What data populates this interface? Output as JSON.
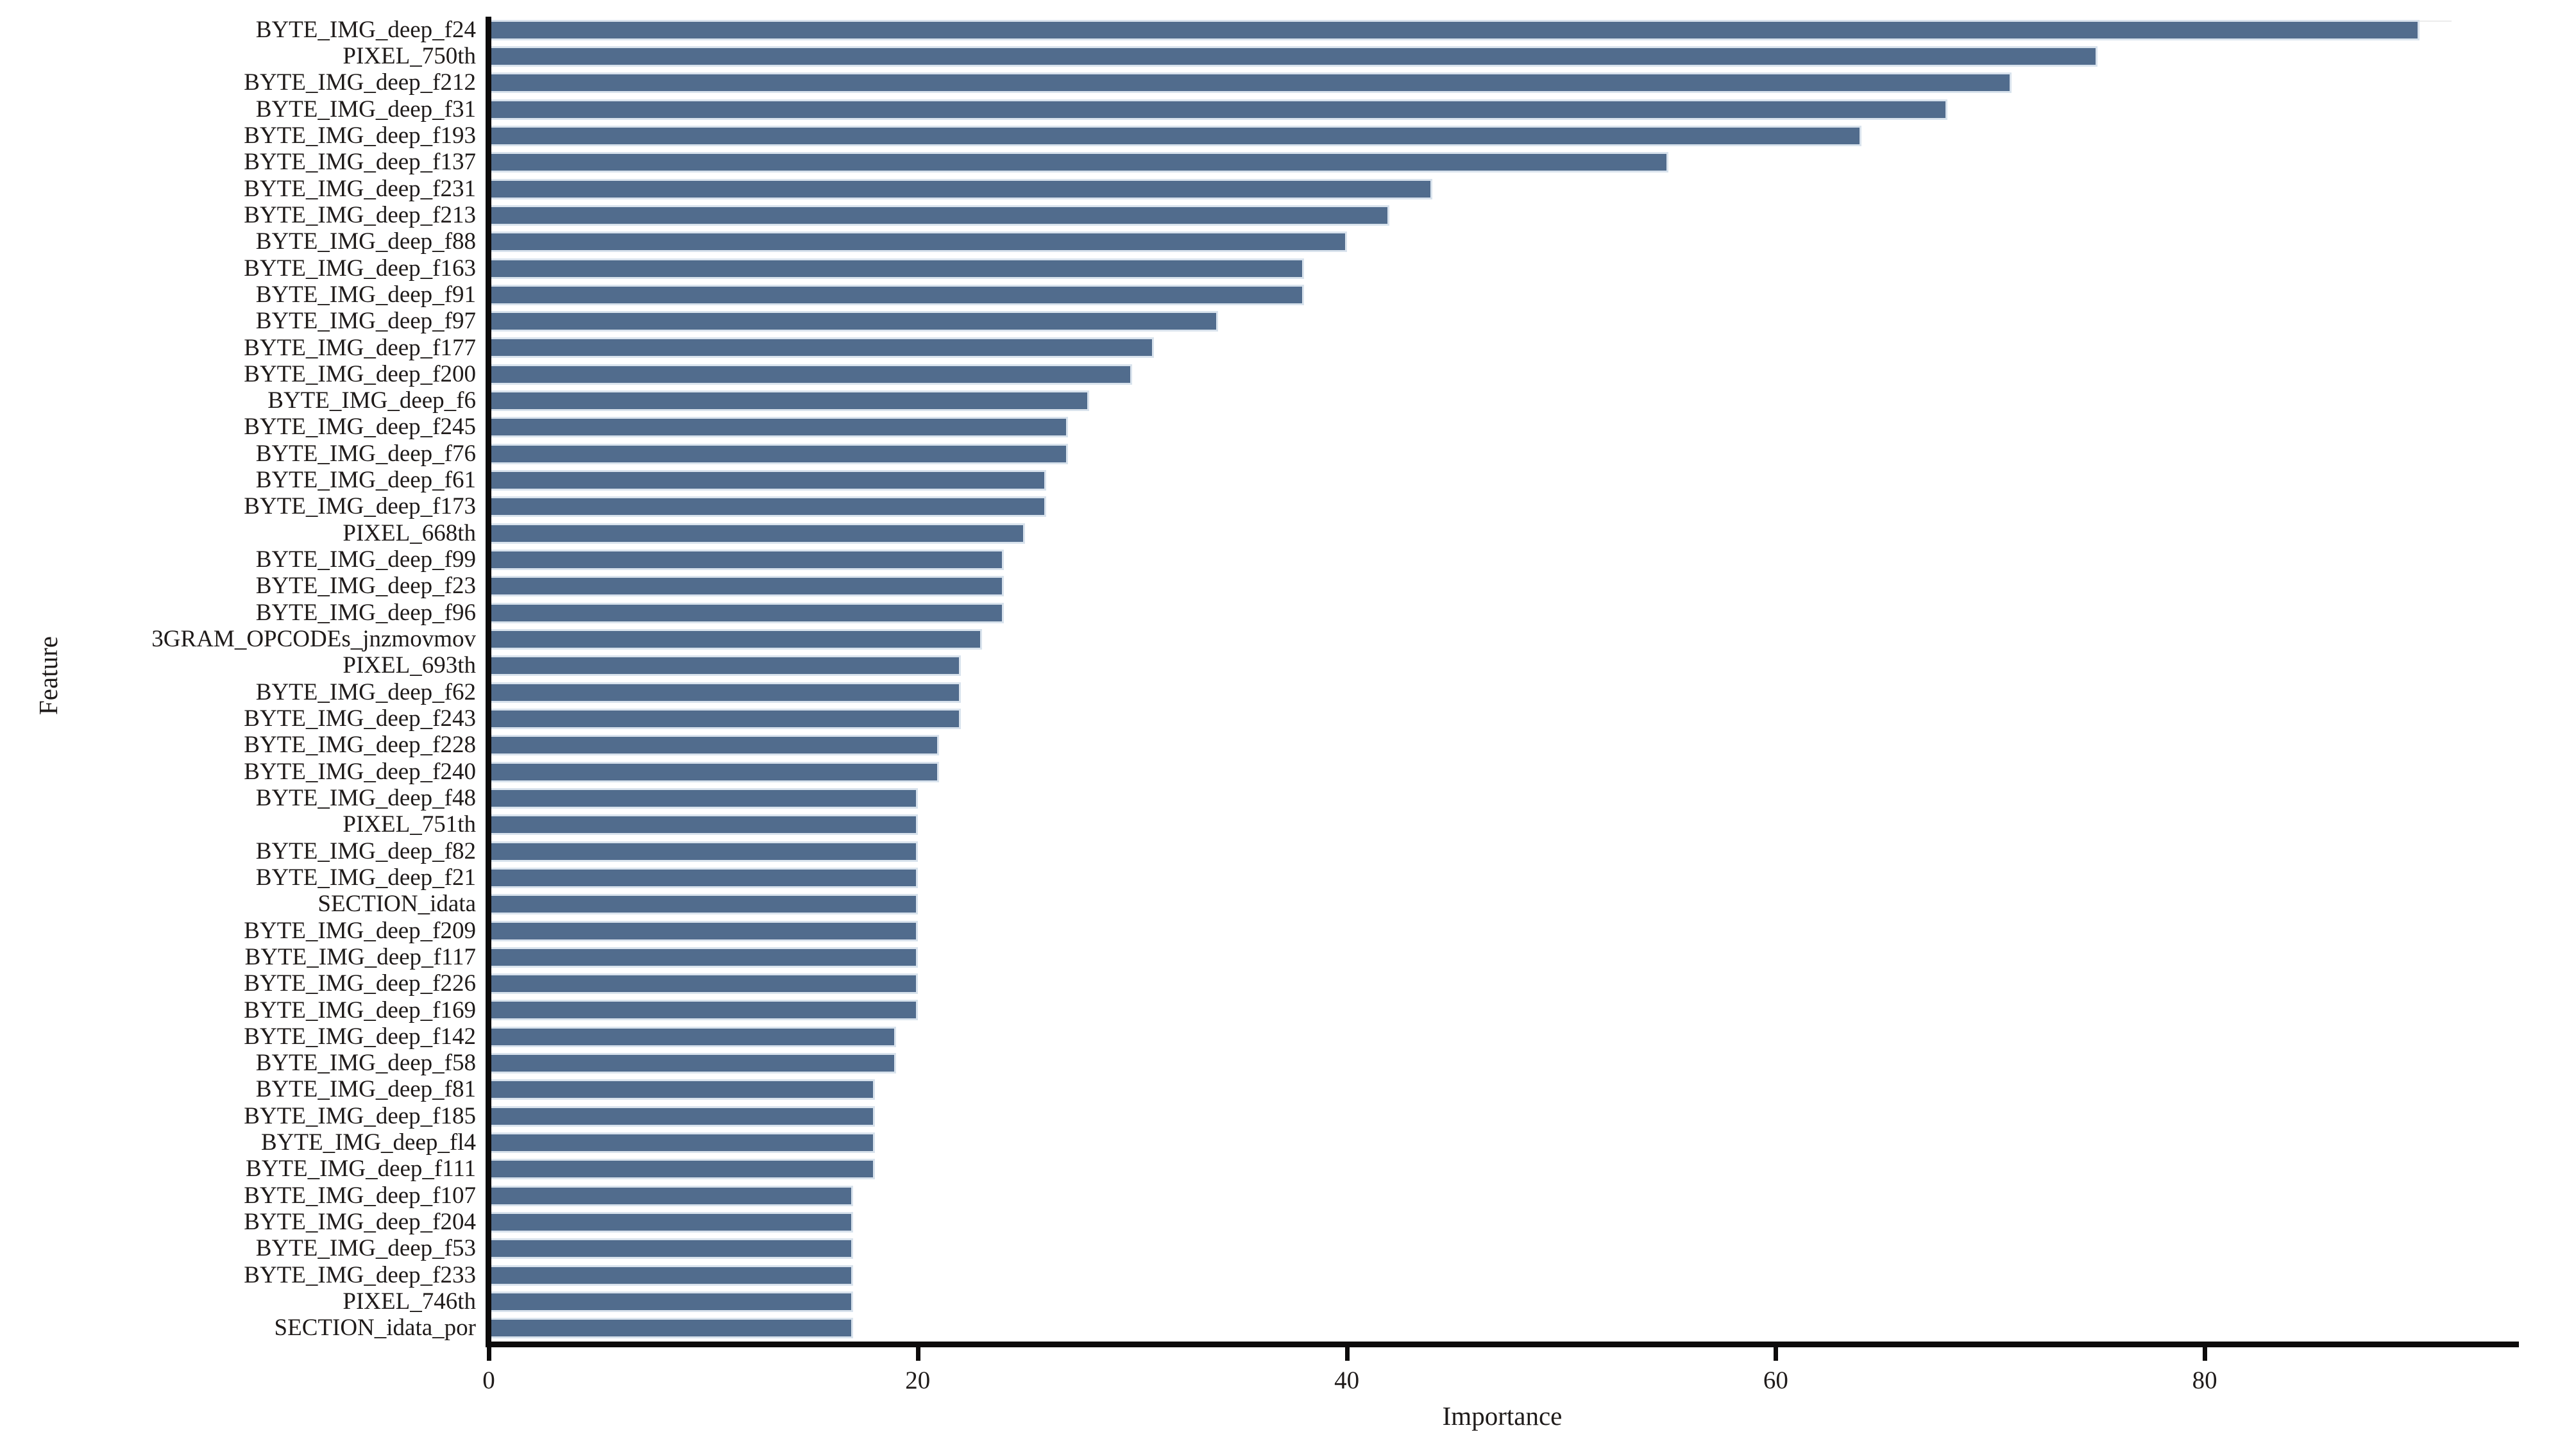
{
  "chart_data": {
    "type": "bar",
    "orientation": "horizontal",
    "title": "",
    "xlabel": "Importance",
    "ylabel": "Feature",
    "xlim": [
      0,
      94.5
    ],
    "xticks": [
      0,
      20,
      40,
      60,
      80
    ],
    "grid": false,
    "legend": false,
    "bar_color": "#516C8D",
    "bar_edge_color": "#D9E3ED",
    "axis_color": "#0d0b0b",
    "categories": [
      "BYTE_IMG_deep_f24",
      "PIXEL_750th",
      "BYTE_IMG_deep_f212",
      "BYTE_IMG_deep_f31",
      "BYTE_IMG_deep_f193",
      "BYTE_IMG_deep_f137",
      "BYTE_IMG_deep_f231",
      "BYTE_IMG_deep_f213",
      "BYTE_IMG_deep_f88",
      "BYTE_IMG_deep_f163",
      "BYTE_IMG_deep_f91",
      "BYTE_IMG_deep_f97",
      "BYTE_IMG_deep_f177",
      "BYTE_IMG_deep_f200",
      "BYTE_IMG_deep_f6",
      "BYTE_IMG_deep_f245",
      "BYTE_IMG_deep_f76",
      "BYTE_IMG_deep_f61",
      "BYTE_IMG_deep_f173",
      "PIXEL_668th",
      "BYTE_IMG_deep_f99",
      "BYTE_IMG_deep_f23",
      "BYTE_IMG_deep_f96",
      "3GRAM_OPCODEs_jnzmovmov",
      "PIXEL_693th",
      "BYTE_IMG_deep_f62",
      "BYTE_IMG_deep_f243",
      "BYTE_IMG_deep_f228",
      "BYTE_IMG_deep_f240",
      "BYTE_IMG_deep_f48",
      "PIXEL_751th",
      "BYTE_IMG_deep_f82",
      "BYTE_IMG_deep_f21",
      "SECTION_idata",
      "BYTE_IMG_deep_f209",
      "BYTE_IMG_deep_f117",
      "BYTE_IMG_deep_f226",
      "BYTE_IMG_deep_f169",
      "BYTE_IMG_deep_f142",
      "BYTE_IMG_deep_f58",
      "BYTE_IMG_deep_f81",
      "BYTE_IMG_deep_f185",
      "BYTE_IMG_deep_fl4",
      "BYTE_IMG_deep_f111",
      "BYTE_IMG_deep_f107",
      "BYTE_IMG_deep_f204",
      "BYTE_IMG_deep_f53",
      "BYTE_IMG_deep_f233",
      "PIXEL_746th",
      "SECTION_idata_por"
    ],
    "values": [
      90,
      75,
      71,
      68,
      64,
      55,
      44,
      42,
      40,
      38,
      38,
      34,
      31,
      30,
      28,
      27,
      27,
      26,
      26,
      25,
      24,
      24,
      24,
      23,
      22,
      22,
      22,
      21,
      21,
      20,
      20,
      20,
      20,
      20,
      20,
      20,
      20,
      20,
      19,
      19,
      18,
      18,
      18,
      18,
      17,
      17,
      17,
      17,
      17,
      17
    ]
  }
}
